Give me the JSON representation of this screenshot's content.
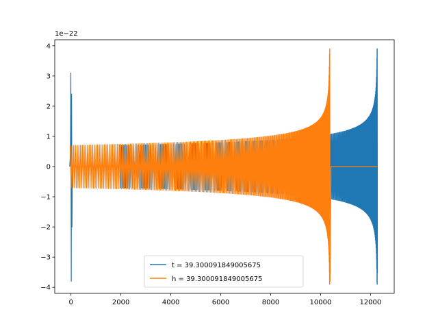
{
  "chart_data": {
    "type": "line",
    "title": "",
    "xlabel": "",
    "ylabel": "",
    "offset_text": "1e−22",
    "xlim": [
      -650,
      12950
    ],
    "ylim": [
      -4.2,
      4.2
    ],
    "xticks": [
      0,
      2000,
      4000,
      6000,
      8000,
      10000,
      12000
    ],
    "xtick_labels": [
      "0",
      "2000",
      "4000",
      "6000",
      "8000",
      "10000",
      "12000"
    ],
    "yticks": [
      -4,
      -3,
      -2,
      -1,
      0,
      1,
      2,
      3,
      4
    ],
    "ytick_labels": [
      "−4",
      "−3",
      "−2",
      "−1",
      "0",
      "1",
      "2",
      "3",
      "4"
    ],
    "grid": false,
    "legend_position": "lower-center",
    "series": [
      {
        "name": "t = 39.300091849005675",
        "color": "#1f77b4",
        "description": "chirp waveform with initial spike near x=0; flat zero segment 0–1900; oscillation amplitude grows from ~0.7 to ~1.0 by x≈10400, then chirps up to peak ~3.9 near x≈12270; minimum ~−3.8 at x≈0",
        "key_points": [
          {
            "x": 0,
            "y_max": 3.1,
            "y_min": -3.8
          },
          {
            "x": 2000,
            "amplitude": 0.7
          },
          {
            "x": 6000,
            "amplitude": 0.8
          },
          {
            "x": 10400,
            "amplitude": 1.0
          },
          {
            "x": 12270,
            "y_max": 3.9,
            "y_min": -3.5
          }
        ]
      },
      {
        "name": "h = 39.300091849005675",
        "color": "#ff7f0e",
        "description": "oscillation of amplitude ~0.7 from x=0 growing to a chirp peak ~3.9 at x≈10370; flat zero segment from 10450 to 12270",
        "key_points": [
          {
            "x": 0,
            "amplitude": 0.7
          },
          {
            "x": 6000,
            "amplitude": 0.8
          },
          {
            "x": 9000,
            "amplitude": 1.0
          },
          {
            "x": 10370,
            "y_max": 3.9,
            "y_min": -3.8
          }
        ]
      }
    ]
  }
}
